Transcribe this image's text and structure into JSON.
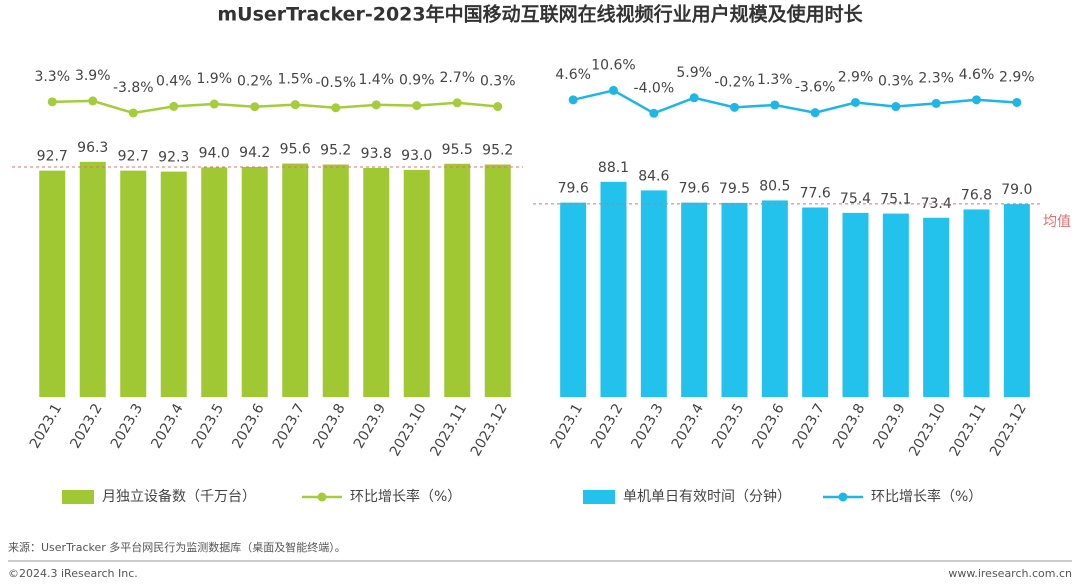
{
  "title": "mUserTracker-2023年中国移动互联网在线视频行业用户规模及使用时长",
  "source": "来源：UserTracker 多平台网民行为监测数据库（桌面及智能终端）。",
  "copyright": "©2024.3 iResearch Inc.",
  "website": "www.iresearch.com.cn",
  "chart_data": [
    {
      "type": "bar",
      "categories": [
        "2023.1",
        "2023.2",
        "2023.3",
        "2023.4",
        "2023.5",
        "2023.6",
        "2023.7",
        "2023.8",
        "2023.9",
        "2023.10",
        "2023.11",
        "2023.12"
      ],
      "ylim": [
        0,
        138
      ],
      "y2lim": [
        -185,
        30
      ],
      "average": 94.2,
      "average_color": "#e07070",
      "series": [
        {
          "name": "月独立设备数（千万台）",
          "color": "#a0c832",
          "values": [
            92.7,
            96.3,
            92.7,
            92.3,
            94.0,
            94.2,
            95.6,
            95.2,
            93.8,
            93.0,
            95.5,
            95.2
          ],
          "value_labels": [
            "92.7",
            "96.3",
            "92.7",
            "92.3",
            "94.0",
            "94.2",
            "95.6",
            "95.2",
            "93.8",
            "93.0",
            "95.5",
            "95.2"
          ]
        },
        {
          "name": "环比增长率（%）",
          "type": "line",
          "axis": "y2",
          "color": "#a5cc3a",
          "values": [
            3.3,
            3.9,
            -3.8,
            0.4,
            1.9,
            0.2,
            1.5,
            -0.5,
            1.4,
            0.9,
            2.7,
            0.3
          ],
          "value_labels": [
            "3.3%",
            "3.9%",
            "-3.8%",
            "0.4%",
            "1.9%",
            "0.2%",
            "1.5%",
            "-0.5%",
            "1.4%",
            "0.9%",
            "2.7%",
            "0.3%"
          ]
        }
      ]
    },
    {
      "type": "bar",
      "categories": [
        "2023.1",
        "2023.2",
        "2023.3",
        "2023.4",
        "2023.5",
        "2023.6",
        "2023.7",
        "2023.8",
        "2023.9",
        "2023.10",
        "2023.11",
        "2023.12"
      ],
      "ylim": [
        0,
        138
      ],
      "y2lim": [
        -185,
        30
      ],
      "average": {
        "value": 79.1,
        "label": "均值"
      },
      "average_color": "#e07070",
      "series": [
        {
          "name": "单机单日有效时间（分钟）",
          "color": "#22c2ec",
          "values": [
            79.6,
            88.1,
            84.6,
            79.6,
            79.5,
            80.5,
            77.6,
            75.4,
            75.1,
            73.4,
            76.8,
            79.0
          ],
          "value_labels": [
            "79.6",
            "88.1",
            "84.6",
            "79.6",
            "79.5",
            "80.5",
            "77.6",
            "75.4",
            "75.1",
            "73.4",
            "76.8",
            "79.0"
          ]
        },
        {
          "name": "环比增长率（%）",
          "type": "line",
          "axis": "y2",
          "color": "#1eb6e6",
          "values": [
            4.6,
            10.6,
            -4.0,
            5.9,
            -0.2,
            1.3,
            -3.6,
            2.9,
            0.3,
            2.3,
            4.6,
            2.9
          ],
          "value_labels": [
            "4.6%",
            "10.6%",
            "-4.0%",
            "5.9%",
            "-0.2%",
            "1.3%",
            "-3.6%",
            "2.9%",
            "0.3%",
            "2.3%",
            "4.6%",
            "2.9%"
          ]
        }
      ]
    }
  ]
}
